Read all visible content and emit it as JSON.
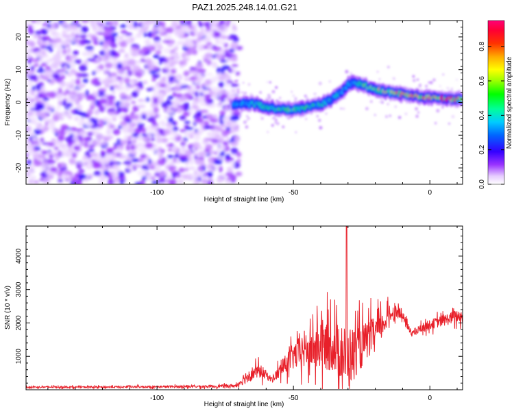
{
  "title": "PAZ1.2025.248.14.01.G21",
  "chart_data": [
    {
      "type": "heatmap",
      "name": "spectrogram",
      "xlabel": "Height of straight line (km)",
      "ylabel": "Frequency (Hz)",
      "xlim": [
        -148,
        12
      ],
      "ylim": [
        -25,
        25
      ],
      "xticks": [
        -100,
        -50,
        0
      ],
      "xtick_labels": [
        "-100",
        "-50",
        "0"
      ],
      "yticks": [
        -20,
        -10,
        0,
        10,
        20
      ],
      "ytick_labels": [
        "-20",
        "-10",
        "0",
        "10",
        "20"
      ],
      "noise_region_x": [
        -148,
        -70
      ],
      "signal_ridge": {
        "x": [
          -72,
          -68,
          -64,
          -60,
          -55,
          -50,
          -45,
          -40,
          -36,
          -32,
          -30,
          -28,
          -25,
          -22,
          -18,
          -14,
          -10,
          -6,
          -2,
          2,
          6,
          10,
          12
        ],
        "freq": [
          -0.5,
          -0.3,
          -0.5,
          -1.5,
          -2.0,
          -2.2,
          -1.5,
          -0.5,
          1.0,
          3.5,
          5.5,
          6.0,
          5.5,
          4.5,
          3.5,
          3.0,
          2.5,
          2.0,
          1.5,
          1.5,
          1.0,
          1.0,
          1.0
        ],
        "amplitude": [
          0.35,
          0.4,
          0.45,
          0.5,
          0.55,
          0.6,
          0.55,
          0.5,
          0.45,
          0.4,
          0.4,
          0.45,
          0.55,
          0.6,
          0.7,
          0.75,
          0.85,
          0.9,
          0.85,
          0.85,
          0.9,
          0.85,
          0.8
        ]
      },
      "colorbar": {
        "label": "Normalized spectral amplitude",
        "range": [
          0,
          0.95
        ],
        "ticks": [
          0.0,
          0.2,
          0.4,
          0.6,
          0.8
        ],
        "tick_labels": [
          "0.0",
          "0.2",
          "0.4",
          "0.6",
          "0.8"
        ]
      }
    },
    {
      "type": "line",
      "name": "snr",
      "xlabel": "Height of straight line (km)",
      "ylabel": "SNR (10 * v/v)",
      "xlim": [
        -148,
        12
      ],
      "ylim": [
        0,
        4900
      ],
      "xticks": [
        -100,
        -50,
        0
      ],
      "xtick_labels": [
        "-100",
        "-50",
        "0"
      ],
      "yticks": [
        1000,
        2000,
        3000,
        4000
      ],
      "ytick_labels": [
        "1000",
        "2000",
        "3000",
        "4000"
      ],
      "color": "#e8202a",
      "envelope": {
        "x": [
          -148,
          -120,
          -100,
          -80,
          -71,
          -68,
          -65,
          -62,
          -60,
          -58,
          -55,
          -52,
          -50,
          -48,
          -46,
          -44,
          -42,
          -40,
          -38,
          -36,
          -34,
          -32,
          -30,
          -28,
          -26,
          -24,
          -22,
          -20,
          -18,
          -16,
          -14,
          -12,
          -10,
          -8,
          -6,
          -4,
          -2,
          0,
          2,
          4,
          6,
          8,
          10,
          12
        ],
        "baseline": [
          80,
          80,
          90,
          100,
          120,
          350,
          500,
          550,
          450,
          300,
          550,
          850,
          1000,
          1100,
          1200,
          1150,
          1250,
          1350,
          1300,
          1350,
          1250,
          1050,
          950,
          1100,
          1200,
          1400,
          1550,
          1750,
          1850,
          2100,
          2300,
          2350,
          2200,
          1850,
          1700,
          1800,
          1900,
          1950,
          2000,
          2050,
          2100,
          2150,
          2200,
          2200
        ],
        "spread": [
          60,
          60,
          70,
          90,
          120,
          400,
          450,
          450,
          300,
          200,
          500,
          700,
          900,
          1100,
          1300,
          1200,
          1400,
          1800,
          1600,
          1800,
          1700,
          1900,
          2200,
          1700,
          1500,
          1300,
          1200,
          1000,
          900,
          700,
          500,
          450,
          350,
          300,
          250,
          280,
          300,
          320,
          350,
          380,
          400,
          420,
          450,
          400
        ]
      },
      "peak": {
        "x": -30.5,
        "y": 4900
      }
    }
  ]
}
